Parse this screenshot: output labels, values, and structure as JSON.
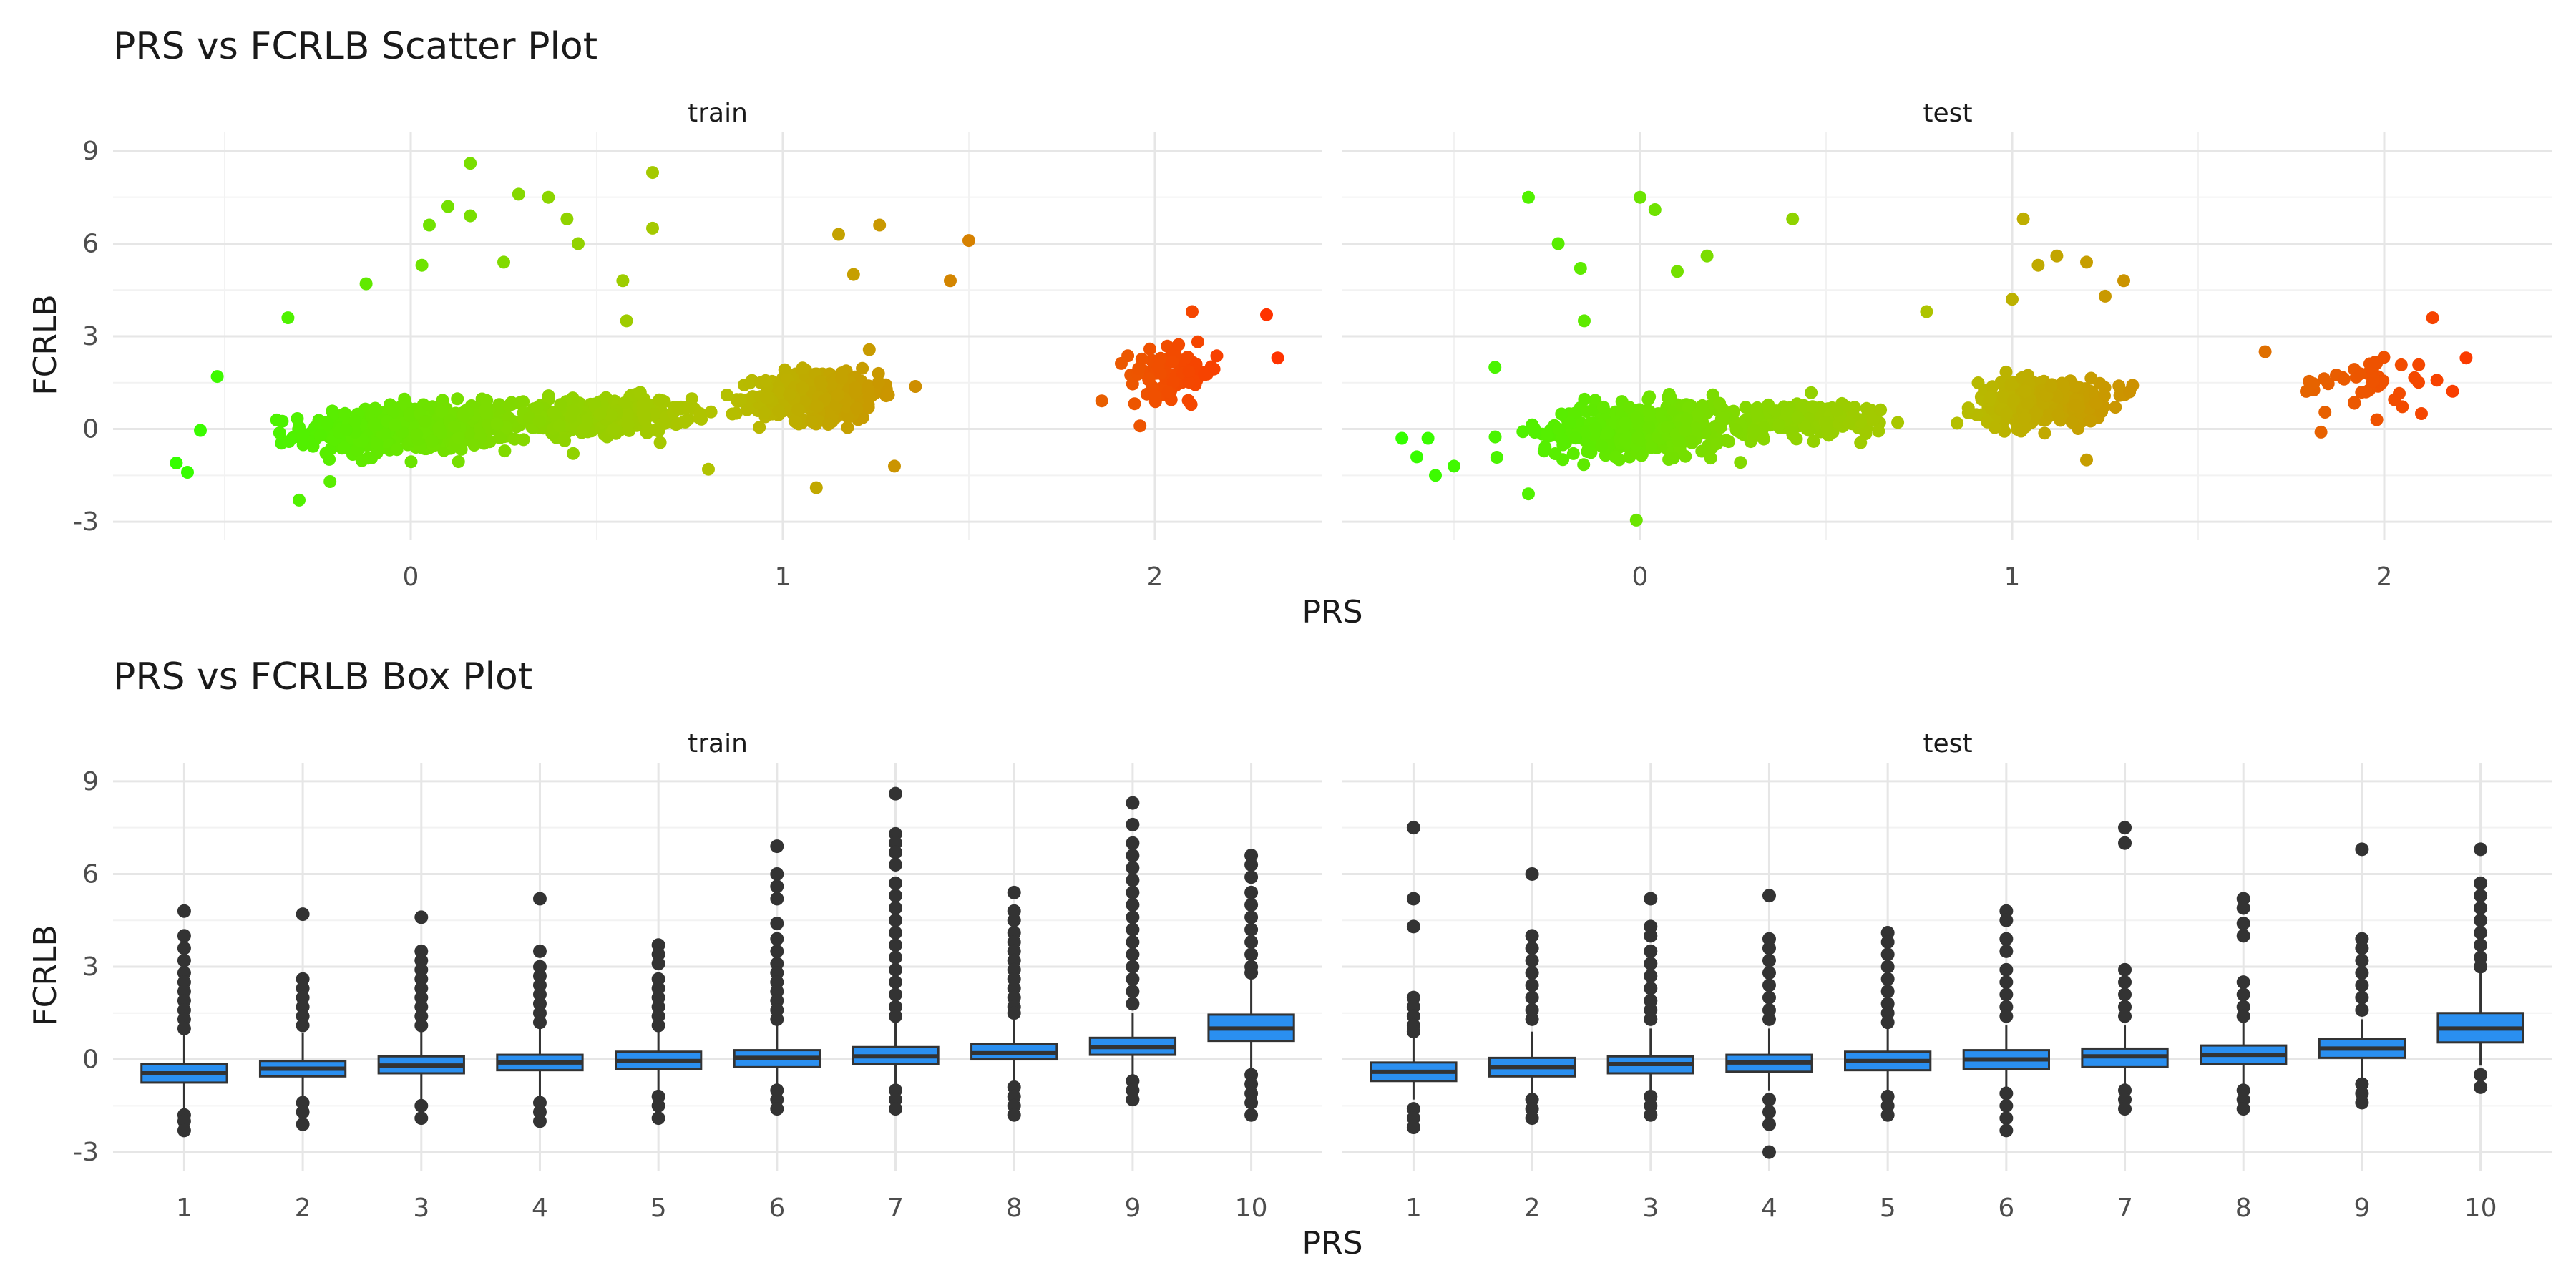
{
  "chart_data": [
    {
      "type": "scatter",
      "title": "PRS vs FCRLB Scatter Plot",
      "xlabel": "PRS",
      "ylabel": "FCRLB",
      "xlim": [
        -0.8,
        2.45
      ],
      "ylim": [
        -3.6,
        9.6
      ],
      "xticks": [
        "0",
        "1",
        "2"
      ],
      "yticks": [
        "-3",
        "0",
        "3",
        "6",
        "9"
      ],
      "grid": true,
      "color_scale": {
        "low": "#33ff00",
        "mid": "#b3c200",
        "high": "#ff3300"
      },
      "panels": [
        {
          "label": "train",
          "clusters": [
            {
              "x_center": 0.0,
              "x_spread": 0.28,
              "y_center": 0.0,
              "y_spread": 0.7,
              "n": 520
            },
            {
              "x_center": 0.5,
              "x_spread": 0.25,
              "y_center": 0.4,
              "y_spread": 0.55,
              "n": 300
            },
            {
              "x_center": 1.1,
              "x_spread": 0.16,
              "y_center": 1.1,
              "y_spread": 0.75,
              "n": 430
            },
            {
              "x_center": 2.05,
              "x_spread": 0.12,
              "y_center": 1.8,
              "y_spread": 0.7,
              "n": 90
            }
          ],
          "outliers": [
            {
              "x": 0.16,
              "y": 8.6
            },
            {
              "x": 0.65,
              "y": 8.3
            },
            {
              "x": 0.29,
              "y": 7.6
            },
            {
              "x": 0.37,
              "y": 7.5
            },
            {
              "x": 0.1,
              "y": 7.2
            },
            {
              "x": 0.16,
              "y": 6.9
            },
            {
              "x": 0.42,
              "y": 6.8
            },
            {
              "x": 0.05,
              "y": 6.6
            },
            {
              "x": 0.65,
              "y": 6.5
            },
            {
              "x": 1.26,
              "y": 6.6
            },
            {
              "x": 1.5,
              "y": 6.1
            },
            {
              "x": 1.15,
              "y": 6.3
            },
            {
              "x": 0.25,
              "y": 5.4
            },
            {
              "x": 0.03,
              "y": 5.3
            },
            {
              "x": 0.45,
              "y": 6.0
            },
            {
              "x": 1.45,
              "y": 4.8
            },
            {
              "x": 1.19,
              "y": 5.0
            },
            {
              "x": 0.57,
              "y": 4.8
            },
            {
              "x": -0.33,
              "y": 3.6
            },
            {
              "x": 0.58,
              "y": 3.5
            },
            {
              "x": -0.12,
              "y": 4.7
            },
            {
              "x": 2.3,
              "y": 3.7
            },
            {
              "x": 2.1,
              "y": 3.8
            },
            {
              "x": 2.33,
              "y": 2.3
            },
            {
              "x": -0.52,
              "y": 1.7
            },
            {
              "x": -0.63,
              "y": -1.1
            },
            {
              "x": -0.6,
              "y": -1.4
            },
            {
              "x": -0.3,
              "y": -2.3
            },
            {
              "x": 1.09,
              "y": -1.9
            },
            {
              "x": 0.8,
              "y": -1.3
            },
            {
              "x": 1.3,
              "y": -1.2
            },
            {
              "x": 1.96,
              "y": 0.1
            }
          ]
        },
        {
          "label": "test",
          "clusters": [
            {
              "x_center": 0.0,
              "x_spread": 0.26,
              "y_center": 0.0,
              "y_spread": 0.75,
              "n": 400
            },
            {
              "x_center": 0.45,
              "x_spread": 0.22,
              "y_center": 0.3,
              "y_spread": 0.55,
              "n": 150
            },
            {
              "x_center": 1.08,
              "x_spread": 0.17,
              "y_center": 0.9,
              "y_spread": 0.65,
              "n": 330
            },
            {
              "x_center": 1.95,
              "x_spread": 0.18,
              "y_center": 1.5,
              "y_spread": 0.8,
              "n": 40
            }
          ],
          "outliers": [
            {
              "x": -0.3,
              "y": 7.5
            },
            {
              "x": 0.0,
              "y": 7.5
            },
            {
              "x": 0.04,
              "y": 7.1
            },
            {
              "x": 0.41,
              "y": 6.8
            },
            {
              "x": -0.22,
              "y": 6.0
            },
            {
              "x": -0.16,
              "y": 5.2
            },
            {
              "x": 0.1,
              "y": 5.1
            },
            {
              "x": 0.18,
              "y": 5.6
            },
            {
              "x": 1.03,
              "y": 6.8
            },
            {
              "x": 1.12,
              "y": 5.6
            },
            {
              "x": 1.07,
              "y": 5.3
            },
            {
              "x": 1.2,
              "y": 5.4
            },
            {
              "x": 1.3,
              "y": 4.8
            },
            {
              "x": 1.25,
              "y": 4.3
            },
            {
              "x": 0.77,
              "y": 3.8
            },
            {
              "x": 1.0,
              "y": 4.2
            },
            {
              "x": -0.39,
              "y": 2.0
            },
            {
              "x": -0.15,
              "y": 3.5
            },
            {
              "x": 2.13,
              "y": 3.6
            },
            {
              "x": 2.22,
              "y": 2.3
            },
            {
              "x": 1.68,
              "y": 2.5
            },
            {
              "x": -0.64,
              "y": -0.3
            },
            {
              "x": -0.57,
              "y": -0.3
            },
            {
              "x": -0.6,
              "y": -0.9
            },
            {
              "x": -0.55,
              "y": -1.5
            },
            {
              "x": -0.5,
              "y": -1.2
            },
            {
              "x": -0.3,
              "y": -2.1
            },
            {
              "x": -0.01,
              "y": -2.95
            },
            {
              "x": 1.2,
              "y": -1.0
            },
            {
              "x": 1.83,
              "y": -0.1
            },
            {
              "x": 1.98,
              "y": 0.3
            },
            {
              "x": 2.1,
              "y": 0.5
            }
          ]
        }
      ]
    },
    {
      "type": "box",
      "title": "PRS vs FCRLB Box Plot",
      "xlabel": "PRS",
      "ylabel": "FCRLB",
      "categories": [
        "1",
        "2",
        "3",
        "4",
        "5",
        "6",
        "7",
        "8",
        "9",
        "10"
      ],
      "ylim": [
        -3.6,
        9.6
      ],
      "yticks": [
        "-3",
        "0",
        "3",
        "6",
        "9"
      ],
      "grid": true,
      "box_fill": "#2a8ff0",
      "panels": [
        {
          "label": "train",
          "boxes": [
            {
              "q1": -0.75,
              "median": -0.45,
              "q3": -0.15,
              "whisker_low": -1.6,
              "whisker_high": 0.8,
              "outliers": [
                4.8,
                4.0,
                3.6,
                3.2,
                2.8,
                2.5,
                2.2,
                1.9,
                1.6,
                1.3,
                1.0,
                -1.8,
                -2.0,
                -2.3
              ]
            },
            {
              "q1": -0.55,
              "median": -0.3,
              "q3": -0.05,
              "whisker_low": -1.2,
              "whisker_high": 0.85,
              "outliers": [
                4.7,
                2.6,
                2.3,
                2.0,
                1.7,
                1.4,
                1.1,
                -1.4,
                -1.7,
                -2.1
              ]
            },
            {
              "q1": -0.45,
              "median": -0.2,
              "q3": 0.1,
              "whisker_low": -1.3,
              "whisker_high": 0.9,
              "outliers": [
                4.6,
                3.5,
                3.2,
                2.9,
                2.6,
                2.3,
                2.0,
                1.7,
                1.4,
                1.1,
                -1.5,
                -1.9
              ]
            },
            {
              "q1": -0.35,
              "median": -0.1,
              "q3": 0.15,
              "whisker_low": -1.2,
              "whisker_high": 1.0,
              "outliers": [
                5.2,
                3.5,
                3.0,
                2.7,
                2.4,
                2.1,
                1.8,
                1.5,
                1.2,
                -1.4,
                -1.7,
                -2.0
              ]
            },
            {
              "q1": -0.3,
              "median": -0.05,
              "q3": 0.25,
              "whisker_low": -1.0,
              "whisker_high": 1.0,
              "outliers": [
                3.7,
                3.4,
                3.1,
                2.6,
                2.3,
                2.0,
                1.7,
                1.4,
                1.1,
                -1.2,
                -1.5,
                -1.9
              ]
            },
            {
              "q1": -0.25,
              "median": 0.05,
              "q3": 0.3,
              "whisker_low": -0.9,
              "whisker_high": 1.1,
              "outliers": [
                6.9,
                6.0,
                5.6,
                5.2,
                4.4,
                3.9,
                3.5,
                3.1,
                2.8,
                2.5,
                2.2,
                1.9,
                1.6,
                1.3,
                -1.0,
                -1.3,
                -1.6
              ]
            },
            {
              "q1": -0.15,
              "median": 0.1,
              "q3": 0.4,
              "whisker_low": -0.9,
              "whisker_high": 1.2,
              "outliers": [
                8.6,
                7.3,
                7.0,
                6.7,
                6.3,
                5.7,
                5.3,
                4.9,
                4.5,
                4.1,
                3.7,
                3.3,
                2.9,
                2.5,
                2.1,
                1.7,
                1.4,
                -1.0,
                -1.3,
                -1.6
              ]
            },
            {
              "q1": 0.0,
              "median": 0.2,
              "q3": 0.5,
              "whisker_low": -0.7,
              "whisker_high": 1.3,
              "outliers": [
                5.4,
                4.8,
                4.5,
                4.1,
                3.8,
                3.5,
                3.2,
                2.9,
                2.6,
                2.3,
                2.0,
                1.7,
                1.5,
                -0.9,
                -1.2,
                -1.5,
                -1.8
              ]
            },
            {
              "q1": 0.15,
              "median": 0.4,
              "q3": 0.7,
              "whisker_low": -0.6,
              "whisker_high": 1.5,
              "outliers": [
                8.3,
                7.6,
                7.0,
                6.6,
                6.2,
                5.8,
                5.4,
                5.0,
                4.6,
                4.2,
                3.8,
                3.4,
                3.0,
                2.6,
                2.2,
                1.8,
                -0.7,
                -1.0,
                -1.3
              ]
            },
            {
              "q1": 0.6,
              "median": 1.0,
              "q3": 1.45,
              "whisker_low": -0.3,
              "whisker_high": 2.6,
              "outliers": [
                6.6,
                6.3,
                5.9,
                5.4,
                5.0,
                4.6,
                4.2,
                3.8,
                3.4,
                3.0,
                2.8,
                -0.5,
                -0.8,
                -1.1,
                -1.4,
                -1.8
              ]
            }
          ]
        },
        {
          "label": "test",
          "boxes": [
            {
              "q1": -0.7,
              "median": -0.4,
              "q3": -0.1,
              "whisker_low": -1.3,
              "whisker_high": 0.7,
              "outliers": [
                7.5,
                5.2,
                4.3,
                2.0,
                1.7,
                1.4,
                1.1,
                0.9,
                -1.6,
                -1.9,
                -2.2
              ]
            },
            {
              "q1": -0.55,
              "median": -0.25,
              "q3": 0.05,
              "whisker_low": -1.1,
              "whisker_high": 0.9,
              "outliers": [
                6.0,
                4.0,
                3.6,
                3.2,
                2.8,
                2.4,
                2.0,
                1.6,
                1.3,
                -1.3,
                -1.6,
                -1.9
              ]
            },
            {
              "q1": -0.45,
              "median": -0.15,
              "q3": 0.1,
              "whisker_low": -1.0,
              "whisker_high": 1.0,
              "outliers": [
                5.2,
                4.3,
                4.0,
                3.5,
                3.1,
                2.7,
                2.3,
                1.9,
                1.6,
                1.3,
                -1.2,
                -1.5,
                -1.8
              ]
            },
            {
              "q1": -0.4,
              "median": -0.1,
              "q3": 0.15,
              "whisker_low": -1.0,
              "whisker_high": 1.0,
              "outliers": [
                5.3,
                3.9,
                3.6,
                3.2,
                2.8,
                2.4,
                2.0,
                1.6,
                1.3,
                -1.3,
                -1.7,
                -2.1,
                -3.0
              ]
            },
            {
              "q1": -0.35,
              "median": -0.05,
              "q3": 0.25,
              "whisker_low": -1.0,
              "whisker_high": 1.0,
              "outliers": [
                4.1,
                3.8,
                3.4,
                3.0,
                2.6,
                2.2,
                1.8,
                1.5,
                1.2,
                -1.2,
                -1.5,
                -1.8
              ]
            },
            {
              "q1": -0.3,
              "median": 0.0,
              "q3": 0.3,
              "whisker_low": -0.9,
              "whisker_high": 1.1,
              "outliers": [
                4.8,
                4.5,
                3.9,
                3.5,
                2.9,
                2.5,
                2.1,
                1.7,
                1.4,
                -1.1,
                -1.5,
                -1.9,
                -2.3
              ]
            },
            {
              "q1": -0.25,
              "median": 0.1,
              "q3": 0.35,
              "whisker_low": -0.9,
              "whisker_high": 1.1,
              "outliers": [
                7.5,
                7.0,
                2.9,
                2.5,
                2.1,
                1.7,
                1.4,
                -1.0,
                -1.3,
                -1.6
              ]
            },
            {
              "q1": -0.15,
              "median": 0.15,
              "q3": 0.45,
              "whisker_low": -0.8,
              "whisker_high": 1.2,
              "outliers": [
                5.2,
                4.9,
                4.4,
                4.0,
                2.5,
                2.1,
                1.7,
                1.4,
                -1.0,
                -1.3,
                -1.6
              ]
            },
            {
              "q1": 0.05,
              "median": 0.35,
              "q3": 0.65,
              "whisker_low": -0.6,
              "whisker_high": 1.3,
              "outliers": [
                6.8,
                3.9,
                3.6,
                3.2,
                2.8,
                2.4,
                2.0,
                1.6,
                -0.8,
                -1.1,
                -1.4
              ]
            },
            {
              "q1": 0.55,
              "median": 1.0,
              "q3": 1.5,
              "whisker_low": -0.2,
              "whisker_high": 2.8,
              "outliers": [
                6.8,
                5.7,
                5.3,
                4.9,
                4.5,
                4.1,
                3.7,
                3.3,
                3.0,
                -0.5,
                -0.9
              ]
            }
          ]
        }
      ]
    }
  ]
}
